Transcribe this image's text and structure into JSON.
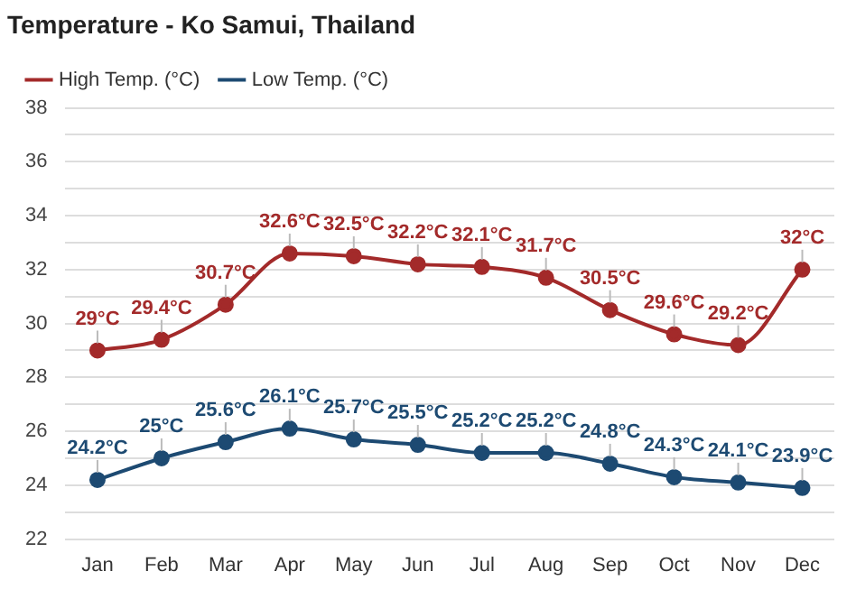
{
  "chart_data": {
    "type": "line",
    "title": "Temperature - Ko Samui, Thailand",
    "categories": [
      "Jan",
      "Feb",
      "Mar",
      "Apr",
      "May",
      "Jun",
      "Jul",
      "Aug",
      "Sep",
      "Oct",
      "Nov",
      "Dec"
    ],
    "series": [
      {
        "name": "High Temp. (°C)",
        "color": "#a32a2a",
        "values": [
          29,
          29.4,
          30.7,
          32.6,
          32.5,
          32.2,
          32.1,
          31.7,
          30.5,
          29.6,
          29.2,
          32
        ],
        "value_labels": [
          "29°C",
          "29.4°C",
          "30.7°C",
          "32.6°C",
          "32.5°C",
          "32.2°C",
          "32.1°C",
          "31.7°C",
          "30.5°C",
          "29.6°C",
          "29.2°C",
          "32°C"
        ]
      },
      {
        "name": "Low Temp. (°C)",
        "color": "#1d4a72",
        "values": [
          24.2,
          25,
          25.6,
          26.1,
          25.7,
          25.5,
          25.2,
          25.2,
          24.8,
          24.3,
          24.1,
          23.9
        ],
        "value_labels": [
          "24.2°C",
          "25°C",
          "25.6°C",
          "26.1°C",
          "25.7°C",
          "25.5°C",
          "25.2°C",
          "25.2°C",
          "24.8°C",
          "24.3°C",
          "24.1°C",
          "23.9°C"
        ]
      }
    ],
    "ylim": [
      22,
      38
    ],
    "yticks": [
      22,
      {
        "value": 23,
        "label": null
      },
      24,
      {
        "value": 25,
        "label": null
      },
      26,
      {
        "value": 27,
        "label": null
      },
      28,
      {
        "value": 29,
        "label": null
      },
      30,
      {
        "value": 31,
        "label": null
      },
      32,
      {
        "value": 33,
        "label": null
      },
      34,
      {
        "value": 35,
        "label": null
      },
      36,
      {
        "value": 37,
        "label": null
      },
      38
    ],
    "grid": "y",
    "legend": "top left",
    "marker": "circle",
    "line_style": "solid"
  }
}
